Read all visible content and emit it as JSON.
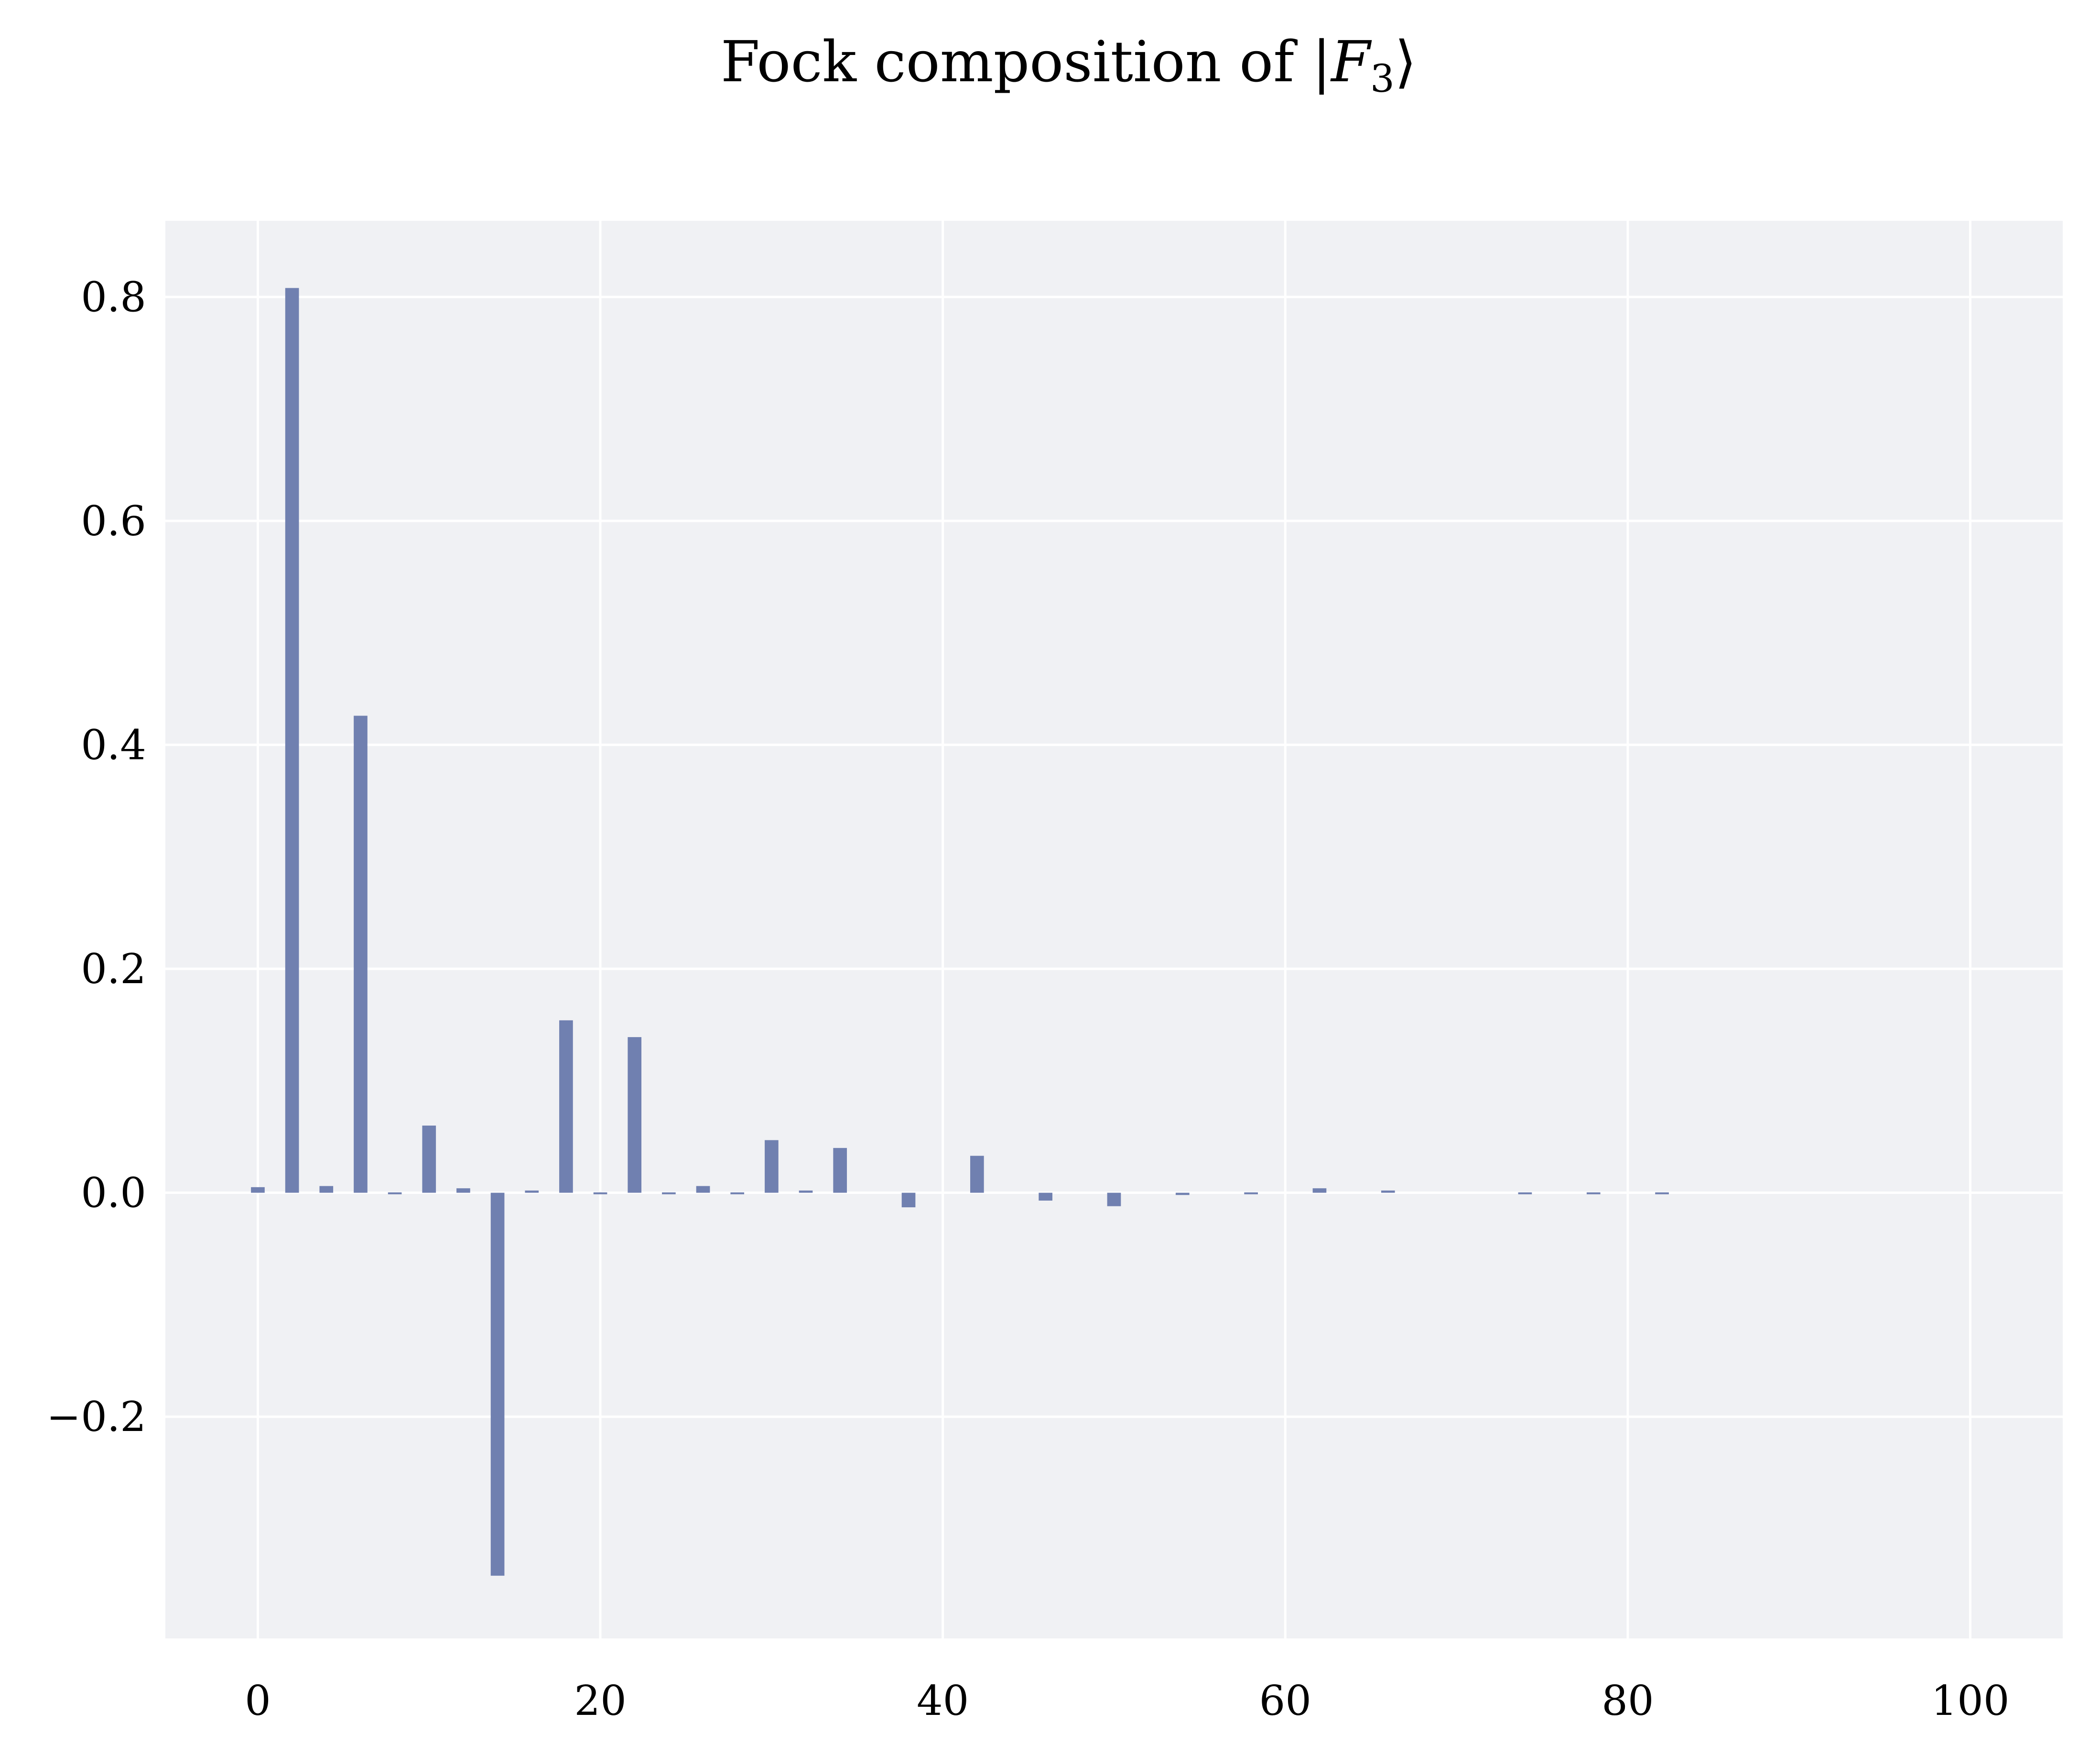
{
  "chart_data": {
    "type": "bar",
    "title_prefix": "Fock composition of ",
    "title_state_open": "|",
    "title_state_symbol": "F",
    "title_state_subscript": "3",
    "title_state_close": "⟩",
    "xlabel": "",
    "ylabel": "",
    "xlim": [
      -5.4,
      105.4
    ],
    "ylim": [
      -0.398,
      0.868
    ],
    "x_ticks": [
      0,
      20,
      40,
      60,
      80,
      100
    ],
    "x_tick_labels": [
      "0",
      "20",
      "40",
      "60",
      "80",
      "100"
    ],
    "y_ticks": [
      -0.2,
      0.0,
      0.2,
      0.4,
      0.6,
      0.8
    ],
    "y_tick_labels": [
      "−0.2",
      "0.0",
      "0.2",
      "0.4",
      "0.6",
      "0.8"
    ],
    "grid": true,
    "legend": "none",
    "colors": {
      "bar": "#7080b0",
      "plot_background": "#f0f1f4",
      "grid": "#ffffff",
      "page_background": "#ffffff"
    },
    "bar_width": 0.8,
    "series": [
      {
        "x": [
          0,
          2,
          4,
          6,
          8,
          10,
          12,
          14,
          16,
          18,
          20,
          22,
          24,
          26,
          28,
          30,
          32,
          34,
          36,
          38,
          40,
          42,
          44,
          46,
          48,
          50,
          52,
          54,
          56,
          58,
          60,
          62,
          64,
          66,
          68,
          70,
          72,
          74,
          76,
          78,
          80,
          82
        ],
        "values": [
          0.005,
          0.808,
          0.006,
          0.426,
          -0.001,
          0.06,
          0.004,
          -0.342,
          0.002,
          0.154,
          -0.001,
          0.139,
          -0.001,
          0.006,
          -0.001,
          0.047,
          0.002,
          0.04,
          0.0,
          -0.013,
          0.0,
          0.033,
          0.0,
          -0.007,
          0.0,
          -0.012,
          0.0,
          -0.002,
          0.0,
          -0.001,
          0.0,
          0.004,
          0.0,
          0.002,
          0.0,
          0.0,
          0.0,
          -0.001,
          0.0,
          -0.001,
          0.0,
          -0.001
        ]
      }
    ]
  }
}
